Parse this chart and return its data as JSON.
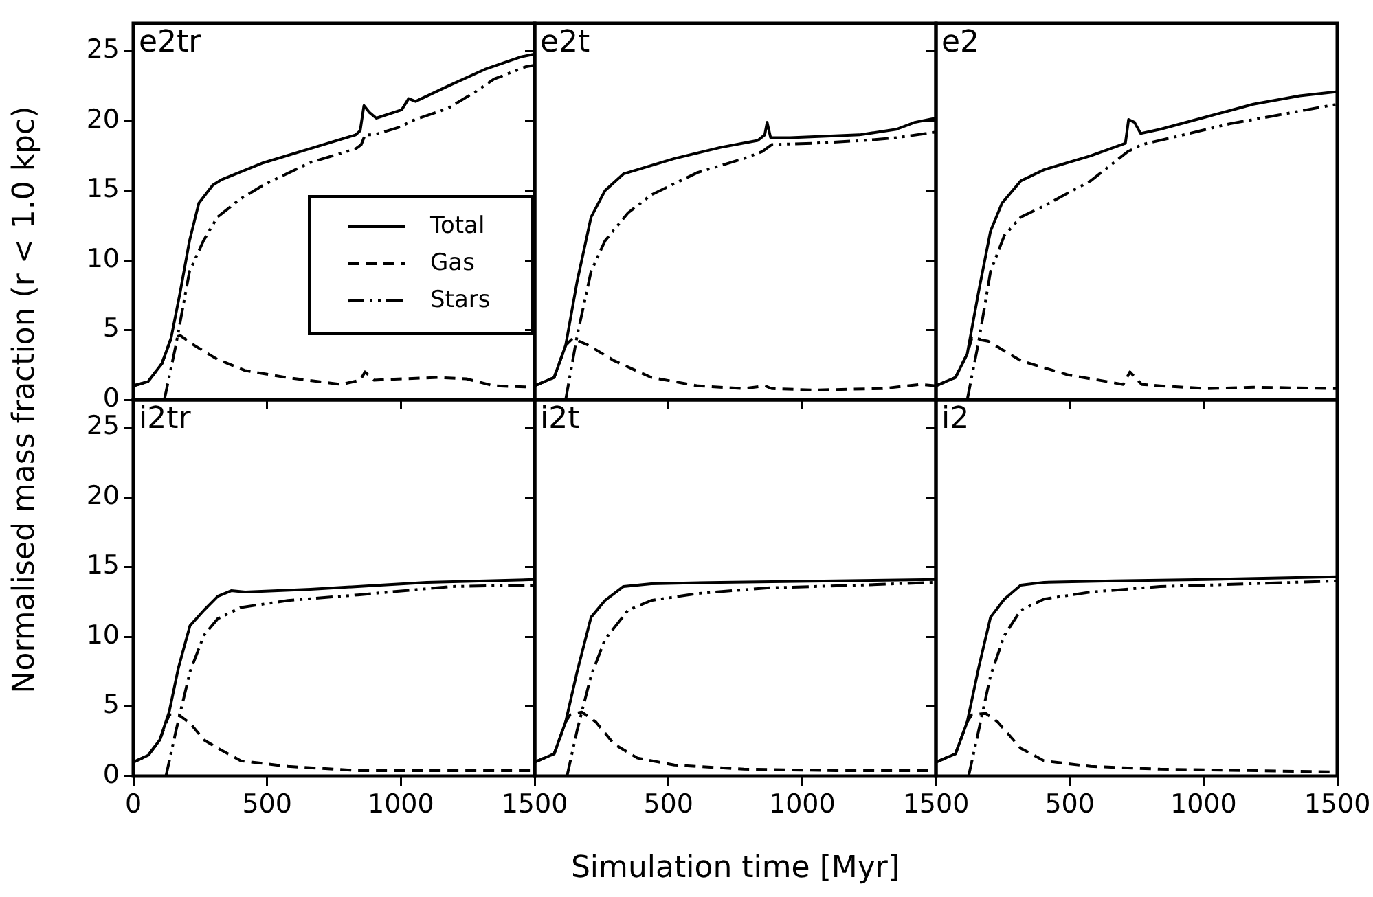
{
  "chart_data": [
    {
      "type": "line",
      "annotations": [
        "e2tr"
      ],
      "ylabel": "Normalised mass fraction (r < 1.0 kpc)",
      "xlim": [
        0,
        1500
      ],
      "ylim": [
        0,
        27
      ],
      "xticks": [
        0,
        500,
        1000,
        1500
      ],
      "yticks": [
        0,
        5,
        10,
        15,
        20,
        25
      ],
      "tick_labels": "y",
      "legend": "right",
      "series": [
        {
          "name": "Total",
          "color": "#000000",
          "line_style": "solid",
          "x": [
            0,
            55,
            107,
            141,
            176,
            210,
            245,
            297,
            331,
            486,
            659,
            831,
            848,
            862,
            883,
            908,
            1003,
            1029,
            1055,
            1176,
            1314,
            1450,
            1500
          ],
          "values": [
            1.0,
            1.3,
            2.6,
            4.4,
            7.8,
            11.4,
            14.1,
            15.4,
            15.8,
            17.0,
            18.0,
            19.0,
            19.3,
            21.1,
            20.6,
            20.2,
            20.8,
            21.6,
            21.4,
            22.5,
            23.7,
            24.6,
            24.8
          ]
        },
        {
          "name": "Gas",
          "color": "#000000",
          "line_style": "dashed",
          "x": [
            0,
            55,
            107,
            141,
            176,
            228,
            314,
            417,
            572,
            776,
            848,
            866,
            900,
            1003,
            1141,
            1245,
            1348,
            1500
          ],
          "values": [
            1.0,
            1.3,
            2.6,
            4.4,
            4.6,
            3.9,
            2.9,
            2.1,
            1.6,
            1.1,
            1.4,
            2.0,
            1.4,
            1.5,
            1.6,
            1.5,
            1.0,
            0.9
          ]
        },
        {
          "name": "Stars",
          "color": "#000000",
          "line_style": "dashdotdot",
          "x": [
            116,
            159,
            210,
            262,
            314,
            400,
            486,
            659,
            831,
            852,
            866,
            900,
            1003,
            1038,
            1176,
            1279,
            1348,
            1469,
            1500
          ],
          "values": [
            0,
            3.9,
            9.2,
            11.4,
            13.1,
            14.4,
            15.4,
            17.0,
            18.0,
            18.3,
            19.0,
            19.0,
            19.6,
            20.0,
            20.9,
            22.1,
            23.0,
            23.9,
            24.0
          ]
        }
      ]
    },
    {
      "type": "line",
      "annotations": [
        "e2t"
      ],
      "xlim": [
        0,
        1500
      ],
      "ylim": [
        0,
        27
      ],
      "xticks": [
        0,
        500,
        1000,
        1500
      ],
      "yticks": [
        0,
        5,
        10,
        15,
        20,
        25
      ],
      "tick_labels": false,
      "series": [
        {
          "color": "#000000",
          "line_style": "solid",
          "x": [
            0,
            73,
            116,
            159,
            211,
            263,
            332,
            522,
            695,
            834,
            860,
            869,
            882,
            955,
            1214,
            1352,
            1421,
            1500
          ],
          "values": [
            1.0,
            1.6,
            3.9,
            8.5,
            13.1,
            15.0,
            16.2,
            17.3,
            18.1,
            18.6,
            19.0,
            19.9,
            18.8,
            18.8,
            19.0,
            19.4,
            19.9,
            20.2
          ]
        },
        {
          "color": "#000000",
          "line_style": "dashed",
          "x": [
            0,
            73,
            116,
            142,
            202,
            297,
            436,
            609,
            782,
            861,
            886,
            1042,
            1301,
            1439,
            1500
          ],
          "values": [
            1.0,
            1.6,
            3.9,
            4.4,
            3.9,
            2.8,
            1.6,
            1.0,
            0.8,
            1.0,
            0.8,
            0.7,
            0.8,
            1.1,
            1.0
          ]
        },
        {
          "color": "#000000",
          "line_style": "dashdotdot",
          "x": [
            116,
            159,
            211,
            263,
            349,
            436,
            609,
            782,
            851,
            886,
            1042,
            1232,
            1353,
            1500
          ],
          "values": [
            0,
            4.6,
            9.2,
            11.4,
            13.4,
            14.7,
            16.3,
            17.3,
            17.8,
            18.3,
            18.4,
            18.6,
            18.8,
            19.2
          ]
        }
      ]
    },
    {
      "type": "line",
      "annotations": [
        "e2"
      ],
      "xlim": [
        0,
        1500
      ],
      "ylim": [
        0,
        27
      ],
      "xticks": [
        0,
        500,
        1000,
        1500
      ],
      "yticks": [
        0,
        5,
        10,
        15,
        20,
        25
      ],
      "tick_labels": false,
      "series": [
        {
          "color": "#000000",
          "line_style": "solid",
          "x": [
            0,
            73,
            117,
            160,
            204,
            247,
            317,
            404,
            578,
            708,
            720,
            742,
            765,
            838,
            1012,
            1186,
            1360,
            1500
          ],
          "values": [
            1.0,
            1.6,
            3.3,
            7.8,
            12.1,
            14.1,
            15.7,
            16.5,
            17.5,
            18.4,
            20.1,
            19.9,
            19.1,
            19.4,
            20.3,
            21.2,
            21.8,
            22.1
          ]
        },
        {
          "color": "#000000",
          "line_style": "dashed",
          "x": [
            0,
            73,
            117,
            134,
            195,
            317,
            491,
            700,
            725,
            769,
            838,
            1012,
            1186,
            1500
          ],
          "values": [
            1.0,
            1.6,
            3.3,
            4.4,
            4.2,
            2.8,
            1.8,
            1.1,
            2.0,
            1.1,
            1.0,
            0.8,
            0.9,
            0.8
          ]
        },
        {
          "color": "#000000",
          "line_style": "dashdotdot",
          "x": [
            117,
            160,
            204,
            256,
            317,
            404,
            578,
            717,
            769,
            925,
            1099,
            1273,
            1500
          ],
          "values": [
            0,
            4.2,
            9.2,
            11.8,
            13.1,
            13.9,
            15.7,
            17.8,
            18.3,
            19.0,
            19.8,
            20.4,
            21.2
          ]
        }
      ]
    },
    {
      "type": "line",
      "annotations": [
        "i2tr"
      ],
      "xlim": [
        0,
        1500
      ],
      "ylim": [
        0,
        27
      ],
      "xticks": [
        0,
        500,
        1000,
        1500
      ],
      "yticks": [
        0,
        5,
        10,
        15,
        20,
        25
      ],
      "series": [
        {
          "color": "#000000",
          "line_style": "solid",
          "x": [
            0,
            56,
            99,
            134,
            169,
            212,
            264,
            316,
            366,
            418,
            662,
            923,
            1097,
            1500
          ],
          "values": [
            1.0,
            1.5,
            2.6,
            4.6,
            7.8,
            10.8,
            11.9,
            12.9,
            13.3,
            13.2,
            13.4,
            13.7,
            13.9,
            14.1
          ]
        },
        {
          "color": "#000000",
          "line_style": "dashed",
          "x": [
            0,
            56,
            99,
            134,
            169,
            212,
            264,
            316,
            402,
            578,
            839,
            1187,
            1500
          ],
          "values": [
            1.0,
            1.5,
            2.6,
            4.4,
            4.4,
            3.8,
            2.6,
            2.0,
            1.1,
            0.7,
            0.4,
            0.4,
            0.4
          ]
        },
        {
          "color": "#000000",
          "line_style": "dashdotdot",
          "x": [
            122,
            160,
            212,
            264,
            316,
            402,
            578,
            839,
            1187,
            1500
          ],
          "values": [
            0,
            3.3,
            7.5,
            10.1,
            11.3,
            12.1,
            12.6,
            13.0,
            13.6,
            13.7
          ]
        }
      ]
    },
    {
      "type": "line",
      "annotations": [
        "i2t"
      ],
      "xlabel": "Simulation time [Myr]",
      "xlim": [
        0,
        1500
      ],
      "ylim": [
        0,
        27
      ],
      "xticks": [
        {
          "value": 0,
          "label": null
        },
        500,
        1000,
        1500
      ],
      "yticks": [
        0,
        5,
        10,
        15,
        20,
        25
      ],
      "tick_labels": "x",
      "series": [
        {
          "color": "#000000",
          "line_style": "solid",
          "x": [
            0,
            73,
            116,
            159,
            211,
            263,
            332,
            436,
            695,
            1128,
            1500
          ],
          "values": [
            1.0,
            1.6,
            3.9,
            7.5,
            11.4,
            12.6,
            13.6,
            13.8,
            13.9,
            14.0,
            14.1
          ]
        },
        {
          "color": "#000000",
          "line_style": "dashed",
          "x": [
            0,
            73,
            116,
            133,
            176,
            228,
            297,
            384,
            522,
            782,
            1128,
            1500
          ],
          "values": [
            1.0,
            1.6,
            3.9,
            4.4,
            4.6,
            3.9,
            2.3,
            1.3,
            0.8,
            0.5,
            0.4,
            0.4
          ]
        },
        {
          "color": "#000000",
          "line_style": "dashdotdot",
          "x": [
            121,
            159,
            211,
            263,
            349,
            436,
            609,
            869,
            1215,
            1500
          ],
          "values": [
            0,
            3.3,
            7.2,
            9.8,
            11.9,
            12.6,
            13.1,
            13.5,
            13.7,
            13.9
          ]
        }
      ]
    },
    {
      "type": "line",
      "annotations": [
        "i2"
      ],
      "xlim": [
        0,
        1500
      ],
      "ylim": [
        0,
        27
      ],
      "xticks": [
        {
          "value": 0,
          "label": null
        },
        500,
        1000,
        1500
      ],
      "yticks": [
        0,
        5,
        10,
        15,
        20,
        25
      ],
      "tick_labels": "x",
      "series": [
        {
          "color": "#000000",
          "line_style": "solid",
          "x": [
            0,
            73,
            117,
            160,
            204,
            256,
            317,
            404,
            665,
            1012,
            1500
          ],
          "values": [
            1.0,
            1.6,
            3.9,
            7.8,
            11.4,
            12.7,
            13.7,
            13.9,
            14.0,
            14.1,
            14.3
          ]
        },
        {
          "color": "#000000",
          "line_style": "dashed",
          "x": [
            0,
            73,
            117,
            134,
            186,
            230,
            317,
            404,
            578,
            838,
            1500
          ],
          "values": [
            1.0,
            1.6,
            3.9,
            4.4,
            4.5,
            3.9,
            2.0,
            1.1,
            0.7,
            0.5,
            0.3
          ]
        },
        {
          "color": "#000000",
          "line_style": "dashdotdot",
          "x": [
            122,
            160,
            204,
            256,
            317,
            404,
            578,
            838,
            1186,
            1500
          ],
          "values": [
            0,
            3.3,
            7.2,
            10.1,
            11.9,
            12.7,
            13.2,
            13.6,
            13.8,
            14.0
          ]
        }
      ]
    }
  ]
}
